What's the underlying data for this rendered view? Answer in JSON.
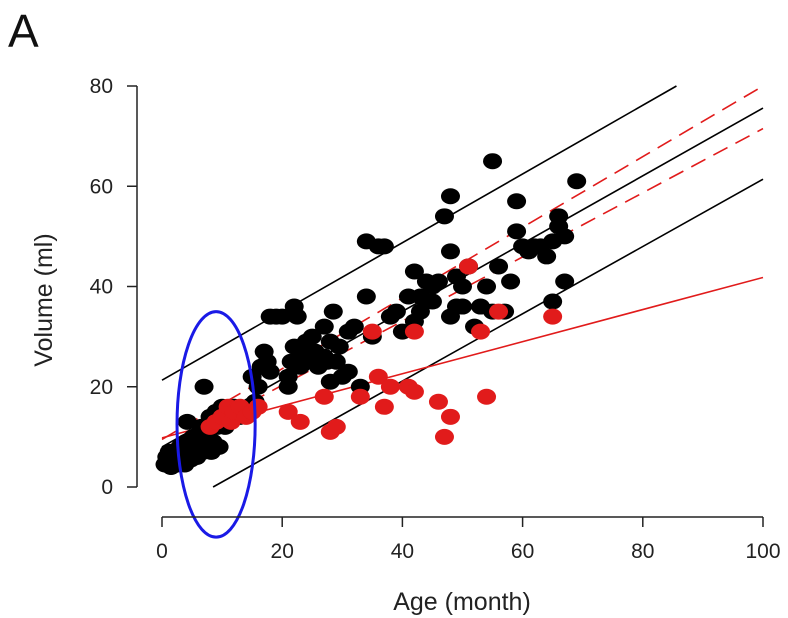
{
  "panel_label": "A",
  "colors": {
    "black_group": "#000000",
    "red_group": "#e11b1b",
    "highlight": "#1a1ae6",
    "axis": "#222222"
  },
  "chart_data": {
    "type": "scatter",
    "title": "",
    "xlabel": "Age (month)",
    "ylabel": "Volume (ml)",
    "xlim": [
      0,
      100
    ],
    "ylim": [
      0,
      80
    ],
    "xticks": [
      0,
      20,
      40,
      60,
      80,
      100
    ],
    "yticks": [
      0,
      20,
      40,
      60,
      80
    ],
    "grid": false,
    "legend": "none",
    "series": [
      {
        "color": "#000000",
        "points": [
          [
            0.5,
            4.5
          ],
          [
            0.8,
            6
          ],
          [
            1,
            5
          ],
          [
            1.2,
            7
          ],
          [
            1.5,
            4
          ],
          [
            1.6,
            5.5
          ],
          [
            2,
            5
          ],
          [
            2,
            7
          ],
          [
            2.2,
            6
          ],
          [
            2.5,
            4.5
          ],
          [
            2.8,
            6.5
          ],
          [
            3,
            5
          ],
          [
            3,
            8
          ],
          [
            3.2,
            7
          ],
          [
            3.5,
            6
          ],
          [
            3.8,
            4.5
          ],
          [
            4,
            9
          ],
          [
            4,
            6
          ],
          [
            4.2,
            13
          ],
          [
            4.5,
            7
          ],
          [
            4.8,
            5.5
          ],
          [
            5,
            8
          ],
          [
            5.2,
            10
          ],
          [
            5.5,
            7
          ],
          [
            5.8,
            6
          ],
          [
            6,
            9
          ],
          [
            6.2,
            8
          ],
          [
            6.5,
            12
          ],
          [
            6.8,
            7
          ],
          [
            7,
            20
          ],
          [
            7.2,
            10
          ],
          [
            7.5,
            8
          ],
          [
            8,
            14
          ],
          [
            8.2,
            7
          ],
          [
            8.5,
            9
          ],
          [
            9,
            15
          ],
          [
            9.2,
            12
          ],
          [
            9.5,
            8
          ],
          [
            10,
            16
          ],
          [
            10.5,
            12
          ],
          [
            11,
            14
          ],
          [
            12,
            16
          ],
          [
            13,
            14
          ],
          [
            14,
            15
          ],
          [
            15,
            22
          ],
          [
            15.5,
            17
          ],
          [
            16,
            20
          ],
          [
            16.5,
            24
          ],
          [
            17,
            27
          ],
          [
            17.5,
            25
          ],
          [
            18,
            23
          ],
          [
            18,
            34
          ],
          [
            19,
            34
          ],
          [
            20,
            34
          ],
          [
            21,
            22
          ],
          [
            21,
            20
          ],
          [
            21.5,
            25
          ],
          [
            22,
            28
          ],
          [
            22,
            36
          ],
          [
            22.5,
            34
          ],
          [
            23,
            24
          ],
          [
            23.5,
            27
          ],
          [
            24,
            29
          ],
          [
            24,
            26
          ],
          [
            25,
            25
          ],
          [
            25,
            30
          ],
          [
            25.5,
            27
          ],
          [
            26,
            24
          ],
          [
            27,
            32
          ],
          [
            27,
            26
          ],
          [
            27.5,
            25
          ],
          [
            28,
            21
          ],
          [
            28,
            29
          ],
          [
            28.5,
            35
          ],
          [
            29,
            25
          ],
          [
            29.5,
            28
          ],
          [
            30,
            22
          ],
          [
            31,
            23
          ],
          [
            31,
            31
          ],
          [
            32,
            32
          ],
          [
            33,
            20
          ],
          [
            34,
            38
          ],
          [
            34,
            49
          ],
          [
            35,
            30
          ],
          [
            36,
            48
          ],
          [
            37,
            48
          ],
          [
            38,
            34
          ],
          [
            39,
            35
          ],
          [
            40,
            31
          ],
          [
            41,
            38
          ],
          [
            42,
            33
          ],
          [
            42,
            43
          ],
          [
            43,
            38
          ],
          [
            43,
            35
          ],
          [
            44,
            41
          ],
          [
            45,
            40
          ],
          [
            45,
            37
          ],
          [
            46,
            41
          ],
          [
            47,
            54
          ],
          [
            48,
            47
          ],
          [
            48,
            34
          ],
          [
            48,
            58
          ],
          [
            49,
            42
          ],
          [
            49,
            36
          ],
          [
            50,
            40
          ],
          [
            50,
            36
          ],
          [
            51,
            44
          ],
          [
            52,
            32
          ],
          [
            53,
            36
          ],
          [
            54,
            40
          ],
          [
            55,
            35
          ],
          [
            55,
            65
          ],
          [
            56,
            44
          ],
          [
            57,
            35
          ],
          [
            58,
            41
          ],
          [
            59,
            51
          ],
          [
            59,
            57
          ],
          [
            60,
            48
          ],
          [
            61,
            47
          ],
          [
            62,
            48
          ],
          [
            63,
            48
          ],
          [
            64,
            46
          ],
          [
            65,
            37
          ],
          [
            65,
            49
          ],
          [
            66,
            52
          ],
          [
            66,
            54
          ],
          [
            67,
            50
          ],
          [
            67,
            41
          ],
          [
            69,
            61
          ]
        ]
      },
      {
        "color": "#e11b1b",
        "points": [
          [
            8,
            12
          ],
          [
            9,
            13
          ],
          [
            10,
            14
          ],
          [
            11,
            16
          ],
          [
            11.5,
            13
          ],
          [
            12,
            15
          ],
          [
            13,
            16
          ],
          [
            14,
            14
          ],
          [
            15,
            15
          ],
          [
            16,
            16
          ],
          [
            21,
            15
          ],
          [
            23,
            13
          ],
          [
            27,
            18
          ],
          [
            28,
            11
          ],
          [
            29,
            12
          ],
          [
            33,
            18
          ],
          [
            35,
            31
          ],
          [
            36,
            22
          ],
          [
            37,
            16
          ],
          [
            38,
            20
          ],
          [
            41,
            20
          ],
          [
            42,
            19
          ],
          [
            42,
            31
          ],
          [
            46,
            17
          ],
          [
            47,
            10
          ],
          [
            48,
            14
          ],
          [
            51,
            44
          ],
          [
            53,
            31
          ],
          [
            54,
            18
          ],
          [
            56,
            35
          ],
          [
            65,
            34
          ]
        ]
      }
    ],
    "lines": [
      {
        "color": "#000000",
        "style": "solid",
        "x": [
          0,
          85.6
        ],
        "y": [
          21.3,
          80
        ]
      },
      {
        "color": "#000000",
        "style": "solid",
        "x": [
          0,
          100
        ],
        "y": [
          8,
          75.6
        ]
      },
      {
        "color": "#000000",
        "style": "solid",
        "x": [
          8.5,
          100
        ],
        "y": [
          0,
          61.4
        ]
      },
      {
        "color": "#e11b1b",
        "style": "solid",
        "x": [
          0,
          100
        ],
        "y": [
          9.8,
          41.8
        ]
      },
      {
        "color": "#e11b1b",
        "style": "dashed",
        "x": [
          0,
          100
        ],
        "y": [
          9.5,
          80
        ]
      },
      {
        "color": "#e11b1b",
        "style": "dashed",
        "x": [
          0,
          100
        ],
        "y": [
          7.5,
          71.5
        ]
      }
    ],
    "highlight_ellipse": {
      "cx": 9,
      "cy": 12.5,
      "rx": 6.5,
      "ry": 22.5,
      "color": "#1a1ae6"
    }
  }
}
